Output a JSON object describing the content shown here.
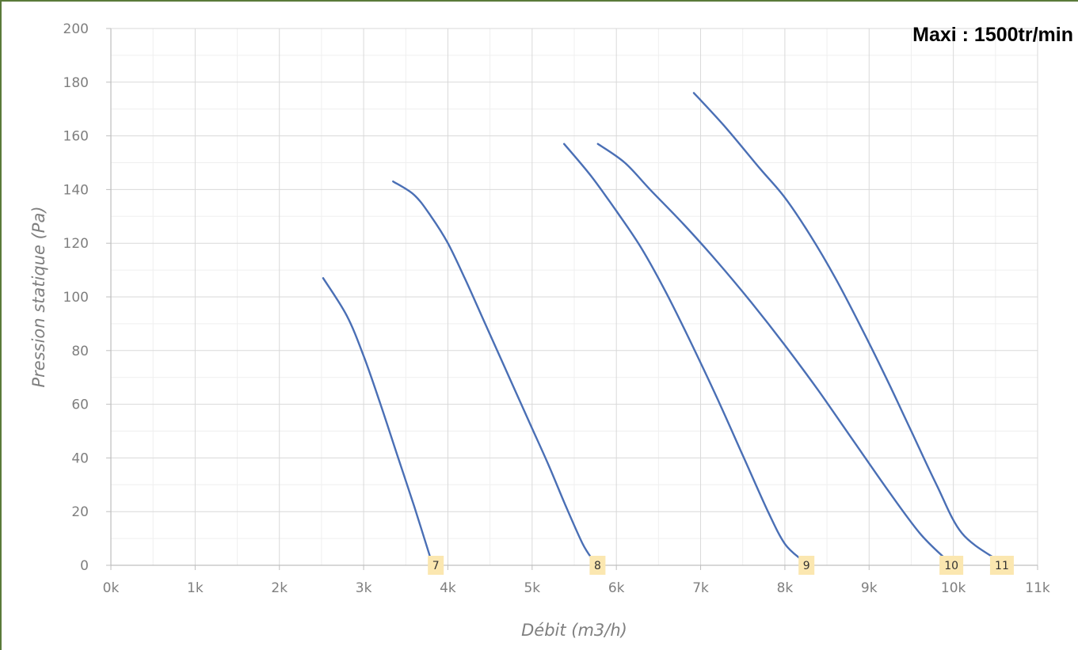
{
  "annotation": "Maxi : 1500tr/min",
  "chart_data": {
    "type": "line",
    "title": "",
    "xlabel": "Débit (m3/h)",
    "ylabel": "Pression statique (Pa)",
    "xlim": [
      0,
      11000
    ],
    "ylim": [
      0,
      200
    ],
    "x_ticks": [
      0,
      1000,
      2000,
      3000,
      4000,
      5000,
      6000,
      7000,
      8000,
      9000,
      10000,
      11000
    ],
    "x_tick_labels": [
      "0k",
      "1k",
      "2k",
      "3k",
      "4k",
      "5k",
      "6k",
      "7k",
      "8k",
      "9k",
      "10k",
      "11k"
    ],
    "y_ticks": [
      0,
      20,
      40,
      60,
      80,
      100,
      120,
      140,
      160,
      180,
      200
    ],
    "y_tick_labels": [
      "0",
      "20",
      "40",
      "60",
      "80",
      "100",
      "120",
      "140",
      "160",
      "180",
      "200"
    ],
    "grid": true,
    "line_color": "#4a6fb5",
    "label_bg_color": "#fbe7b0",
    "series": [
      {
        "label": "7",
        "points": [
          [
            2520,
            107
          ],
          [
            2800,
            93
          ],
          [
            3000,
            78
          ],
          [
            3200,
            60
          ],
          [
            3400,
            41
          ],
          [
            3600,
            22
          ],
          [
            3800,
            2
          ]
        ]
      },
      {
        "label": "8",
        "points": [
          [
            3350,
            143
          ],
          [
            3600,
            138
          ],
          [
            3800,
            130
          ],
          [
            4000,
            120
          ],
          [
            4200,
            107
          ],
          [
            4400,
            93
          ],
          [
            4600,
            79
          ],
          [
            4800,
            65
          ],
          [
            5000,
            51
          ],
          [
            5200,
            37
          ],
          [
            5400,
            22
          ],
          [
            5600,
            8
          ],
          [
            5720,
            2
          ]
        ]
      },
      {
        "label": "9",
        "points": [
          [
            5380,
            157
          ],
          [
            5700,
            145
          ],
          [
            6000,
            132
          ],
          [
            6300,
            118
          ],
          [
            6600,
            101
          ],
          [
            6900,
            82
          ],
          [
            7200,
            62
          ],
          [
            7500,
            41
          ],
          [
            7800,
            20
          ],
          [
            8000,
            8
          ],
          [
            8200,
            2
          ]
        ]
      },
      {
        "label": "10",
        "points": [
          [
            5780,
            157
          ],
          [
            6100,
            150
          ],
          [
            6400,
            140
          ],
          [
            6800,
            127
          ],
          [
            7200,
            113
          ],
          [
            7600,
            98
          ],
          [
            8000,
            82
          ],
          [
            8400,
            65
          ],
          [
            8800,
            47
          ],
          [
            9200,
            29
          ],
          [
            9600,
            12
          ],
          [
            9920,
            2
          ]
        ]
      },
      {
        "label": "11",
        "points": [
          [
            6920,
            176
          ],
          [
            7300,
            163
          ],
          [
            7700,
            148
          ],
          [
            8000,
            137
          ],
          [
            8300,
            123
          ],
          [
            8600,
            107
          ],
          [
            8900,
            89
          ],
          [
            9200,
            70
          ],
          [
            9500,
            50
          ],
          [
            9800,
            30
          ],
          [
            10100,
            12
          ],
          [
            10520,
            2
          ]
        ]
      }
    ]
  }
}
